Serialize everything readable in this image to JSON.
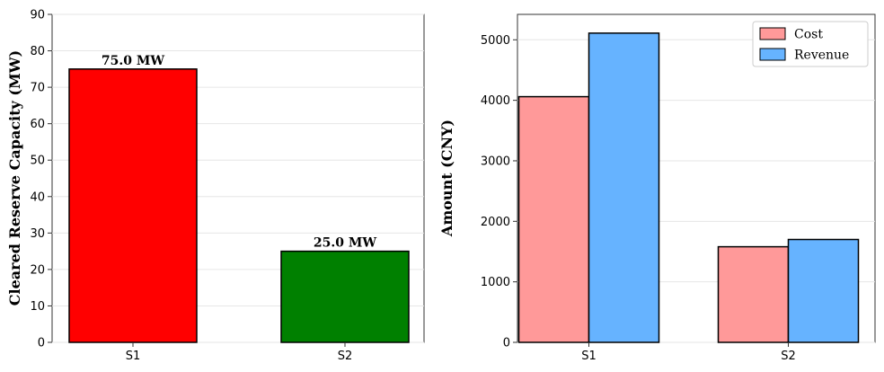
{
  "chart_data": [
    {
      "type": "bar",
      "categories": [
        "S1",
        "S2"
      ],
      "values": [
        75.0,
        25.0
      ],
      "bar_colors": [
        "#ff0000",
        "#008000"
      ],
      "data_labels": [
        "75.0 MW",
        "25.0 MW"
      ],
      "title": "",
      "xlabel": "",
      "ylabel": "Cleared Reserve Capacity (MW)",
      "ylim": [
        0,
        90
      ],
      "yticks": [
        0,
        10,
        20,
        30,
        40,
        50,
        60,
        70,
        80,
        90
      ],
      "grid": "horizontal"
    },
    {
      "type": "bar",
      "categories": [
        "S1",
        "S2"
      ],
      "series": [
        {
          "name": "Cost",
          "values": [
            4060,
            1580
          ],
          "color": "#ff9999"
        },
        {
          "name": "Revenue",
          "values": [
            5110,
            1700
          ],
          "color": "#66b3ff"
        }
      ],
      "title": "",
      "xlabel": "",
      "ylabel": "Amount (CNY)",
      "ylim": [
        0,
        5420
      ],
      "yticks": [
        0,
        1000,
        2000,
        3000,
        4000,
        5000
      ],
      "grid": "horizontal",
      "legend_position": "top-right"
    }
  ]
}
